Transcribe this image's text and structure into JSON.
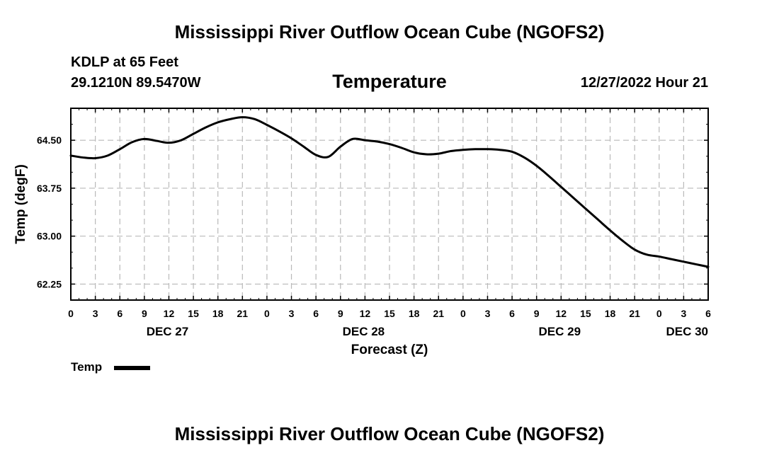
{
  "title": "Mississippi River Outflow Ocean Cube (NGOFS2)",
  "station": "KDLP at 65 Feet",
  "coords": "29.1210N  89.5470W",
  "parameter": "Temperature",
  "datetime": "12/27/2022 Hour 21",
  "legend": {
    "label": "Temp"
  },
  "second_title": "Mississippi River Outflow Ocean Cube (NGOFS2)",
  "chart_data": {
    "type": "line",
    "title": "Temperature",
    "xlabel": "Forecast (Z)",
    "ylabel": "Temp (degF)",
    "ylim": [
      62.0,
      65.0
    ],
    "xlim": [
      0,
      78
    ],
    "grid": true,
    "yticks": [
      62.25,
      63.0,
      63.75,
      64.5
    ],
    "ytick_labels": [
      "62.25",
      "63.00",
      "63.75",
      "64.50"
    ],
    "xtick_hours": [
      0,
      3,
      6,
      9,
      12,
      15,
      18,
      21,
      24,
      27,
      30,
      33,
      36,
      39,
      42,
      45,
      48,
      51,
      54,
      57,
      60,
      63,
      66,
      69,
      72,
      75,
      78
    ],
    "xtick_labels": [
      "0",
      "3",
      "6",
      "9",
      "12",
      "15",
      "18",
      "21",
      "0",
      "3",
      "6",
      "9",
      "12",
      "15",
      "18",
      "21",
      "0",
      "3",
      "6",
      "9",
      "12",
      "15",
      "18",
      "21",
      "0",
      "3",
      "6"
    ],
    "day_labels": [
      {
        "hour": 12,
        "label": "DEC 27"
      },
      {
        "hour": 36,
        "label": "DEC 28"
      },
      {
        "hour": 60,
        "label": "DEC 29"
      },
      {
        "hour": 78,
        "label": "DEC 30"
      }
    ],
    "series": [
      {
        "name": "Temp",
        "x": [
          0,
          1.5,
          3,
          4.5,
          6,
          7.5,
          9,
          10.5,
          12,
          13.5,
          15,
          16.5,
          18,
          19.5,
          21,
          22.5,
          24,
          25.5,
          27,
          28.5,
          30,
          31.5,
          33,
          34.5,
          36,
          37.5,
          39,
          40.5,
          42,
          43.5,
          45,
          46.5,
          48,
          49.5,
          51,
          52.5,
          54,
          55.5,
          57,
          58.5,
          60,
          61.5,
          63,
          64.5,
          66,
          67.5,
          69,
          70.5,
          72,
          73.5,
          75,
          76.5,
          78
        ],
        "values": [
          64.26,
          64.23,
          64.22,
          64.26,
          64.36,
          64.47,
          64.52,
          64.49,
          64.46,
          64.5,
          64.6,
          64.7,
          64.78,
          64.83,
          64.86,
          64.83,
          64.74,
          64.64,
          64.53,
          64.4,
          64.27,
          64.24,
          64.4,
          64.52,
          64.5,
          64.48,
          64.44,
          64.38,
          64.31,
          64.28,
          64.29,
          64.33,
          64.35,
          64.36,
          64.36,
          64.35,
          64.32,
          64.23,
          64.1,
          63.94,
          63.77,
          63.6,
          63.43,
          63.26,
          63.09,
          62.93,
          62.79,
          62.71,
          62.68,
          62.64,
          62.6,
          62.56,
          62.52
        ]
      }
    ]
  }
}
